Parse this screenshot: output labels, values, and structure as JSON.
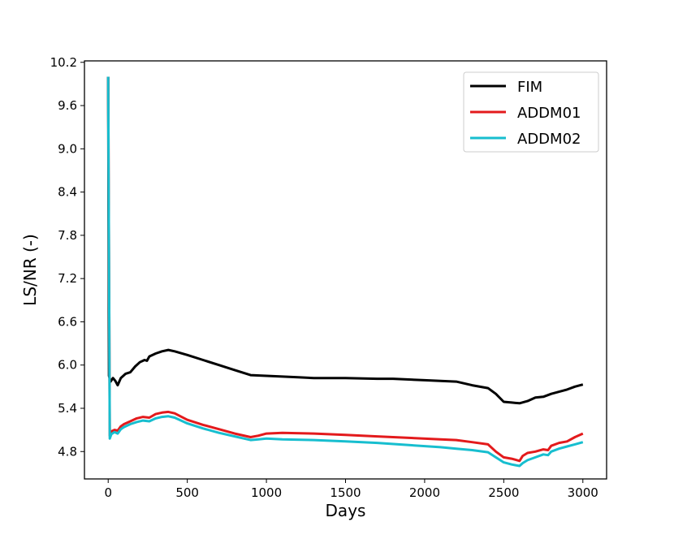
{
  "chart_data": {
    "type": "line",
    "xlabel": "Days",
    "ylabel": "LS/NR  (-)",
    "xlim": [
      -150,
      3150
    ],
    "ylim": [
      4.42,
      10.22
    ],
    "xticks": [
      0,
      500,
      1000,
      1500,
      2000,
      2500,
      3000
    ],
    "yticks": [
      4.8,
      5.4,
      6.0,
      6.6,
      7.2,
      7.8,
      8.4,
      9.0,
      9.6,
      10.2
    ],
    "ytick_labels": [
      "4.8",
      "5.4",
      "6.0",
      "6.6",
      "7.2",
      "7.8",
      "8.4",
      "9.0",
      "9.6",
      "10.2"
    ],
    "legend_position": "upper-right",
    "series": [
      {
        "name": "FIM",
        "color": "#000000",
        "points": [
          [
            0,
            10.0
          ],
          [
            5,
            5.85
          ],
          [
            15,
            5.77
          ],
          [
            30,
            5.82
          ],
          [
            45,
            5.78
          ],
          [
            60,
            5.72
          ],
          [
            80,
            5.82
          ],
          [
            110,
            5.88
          ],
          [
            140,
            5.9
          ],
          [
            170,
            5.98
          ],
          [
            200,
            6.04
          ],
          [
            230,
            6.07
          ],
          [
            245,
            6.06
          ],
          [
            260,
            6.12
          ],
          [
            300,
            6.16
          ],
          [
            340,
            6.19
          ],
          [
            380,
            6.21
          ],
          [
            420,
            6.19
          ],
          [
            500,
            6.14
          ],
          [
            600,
            6.07
          ],
          [
            700,
            6.0
          ],
          [
            800,
            5.93
          ],
          [
            900,
            5.86
          ],
          [
            1000,
            5.85
          ],
          [
            1100,
            5.84
          ],
          [
            1200,
            5.83
          ],
          [
            1300,
            5.82
          ],
          [
            1500,
            5.82
          ],
          [
            1700,
            5.81
          ],
          [
            1800,
            5.81
          ],
          [
            2000,
            5.79
          ],
          [
            2200,
            5.77
          ],
          [
            2300,
            5.72
          ],
          [
            2400,
            5.68
          ],
          [
            2450,
            5.6
          ],
          [
            2500,
            5.49
          ],
          [
            2550,
            5.48
          ],
          [
            2600,
            5.47
          ],
          [
            2650,
            5.5
          ],
          [
            2700,
            5.55
          ],
          [
            2750,
            5.56
          ],
          [
            2800,
            5.6
          ],
          [
            2850,
            5.63
          ],
          [
            2900,
            5.66
          ],
          [
            2950,
            5.7
          ],
          [
            3000,
            5.73
          ]
        ]
      },
      {
        "name": "ADDM01",
        "color": "#e31a1c",
        "points": [
          [
            0,
            10.0
          ],
          [
            10,
            5.02
          ],
          [
            20,
            5.08
          ],
          [
            40,
            5.1
          ],
          [
            60,
            5.09
          ],
          [
            80,
            5.15
          ],
          [
            100,
            5.18
          ],
          [
            140,
            5.22
          ],
          [
            180,
            5.26
          ],
          [
            220,
            5.28
          ],
          [
            260,
            5.27
          ],
          [
            300,
            5.32
          ],
          [
            340,
            5.34
          ],
          [
            380,
            5.35
          ],
          [
            420,
            5.33
          ],
          [
            500,
            5.24
          ],
          [
            600,
            5.17
          ],
          [
            700,
            5.11
          ],
          [
            800,
            5.05
          ],
          [
            900,
            5.0
          ],
          [
            950,
            5.02
          ],
          [
            1000,
            5.05
          ],
          [
            1100,
            5.06
          ],
          [
            1300,
            5.05
          ],
          [
            1500,
            5.03
          ],
          [
            1700,
            5.01
          ],
          [
            1900,
            4.99
          ],
          [
            2100,
            4.97
          ],
          [
            2200,
            4.96
          ],
          [
            2300,
            4.93
          ],
          [
            2400,
            4.9
          ],
          [
            2450,
            4.8
          ],
          [
            2500,
            4.72
          ],
          [
            2550,
            4.7
          ],
          [
            2600,
            4.67
          ],
          [
            2620,
            4.74
          ],
          [
            2650,
            4.78
          ],
          [
            2700,
            4.8
          ],
          [
            2750,
            4.83
          ],
          [
            2780,
            4.82
          ],
          [
            2800,
            4.88
          ],
          [
            2850,
            4.92
          ],
          [
            2900,
            4.94
          ],
          [
            2950,
            5.0
          ],
          [
            3000,
            5.05
          ]
        ]
      },
      {
        "name": "ADDM02",
        "color": "#17becf",
        "points": [
          [
            0,
            10.0
          ],
          [
            10,
            4.98
          ],
          [
            20,
            5.04
          ],
          [
            40,
            5.07
          ],
          [
            60,
            5.05
          ],
          [
            80,
            5.11
          ],
          [
            100,
            5.14
          ],
          [
            140,
            5.18
          ],
          [
            180,
            5.21
          ],
          [
            220,
            5.23
          ],
          [
            260,
            5.22
          ],
          [
            300,
            5.26
          ],
          [
            340,
            5.28
          ],
          [
            380,
            5.29
          ],
          [
            420,
            5.27
          ],
          [
            500,
            5.19
          ],
          [
            600,
            5.12
          ],
          [
            700,
            5.06
          ],
          [
            800,
            5.01
          ],
          [
            900,
            4.96
          ],
          [
            950,
            4.97
          ],
          [
            1000,
            4.98
          ],
          [
            1100,
            4.97
          ],
          [
            1300,
            4.96
          ],
          [
            1500,
            4.94
          ],
          [
            1700,
            4.92
          ],
          [
            1900,
            4.89
          ],
          [
            2100,
            4.86
          ],
          [
            2200,
            4.84
          ],
          [
            2300,
            4.82
          ],
          [
            2400,
            4.79
          ],
          [
            2450,
            4.72
          ],
          [
            2500,
            4.65
          ],
          [
            2550,
            4.62
          ],
          [
            2600,
            4.6
          ],
          [
            2620,
            4.64
          ],
          [
            2650,
            4.68
          ],
          [
            2700,
            4.72
          ],
          [
            2750,
            4.76
          ],
          [
            2780,
            4.75
          ],
          [
            2800,
            4.8
          ],
          [
            2850,
            4.84
          ],
          [
            2900,
            4.87
          ],
          [
            2950,
            4.9
          ],
          [
            3000,
            4.93
          ]
        ]
      }
    ]
  }
}
